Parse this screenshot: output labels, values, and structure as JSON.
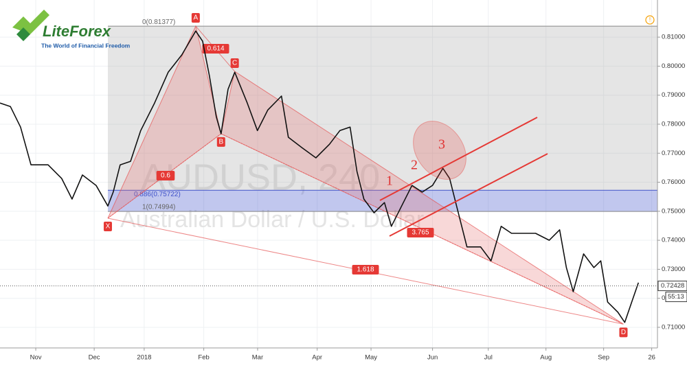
{
  "brand": {
    "name": "LiteForex",
    "tagline": "The World of Financial Freedom"
  },
  "chart_data": {
    "type": "line",
    "watermark": "AUDUSD, 240",
    "subtitle": "Australian Dollar / U.S. Dollar",
    "color": "#111111",
    "x": [
      0,
      5.4,
      10.7,
      16.1,
      25,
      32.1,
      37.5,
      42.9,
      50,
      56.1,
      58.9,
      62.5,
      67.9,
      73.2,
      80.4,
      87.5,
      94.6,
      101.8,
      105.4,
      108.9,
      112.5,
      115,
      118.6,
      122.1,
      128.6,
      133.9,
      139.3,
      146.4,
      150,
      157.1,
      164.3,
      171.4,
      176.8,
      182.1,
      185.7,
      189.3,
      194.6,
      200,
      203.6,
      208.9,
      214.3,
      219.6,
      225,
      230.4,
      233.9,
      237.5,
      242.9,
      250,
      255.4,
      260.7,
      266.1,
      271.4,
      278.6,
      285.7,
      291.1,
      294.6,
      298.2,
      303.6,
      308.9,
      312.5,
      316.1,
      321.4,
      325,
      328.6,
      332.1
    ],
    "values": [
      0.7873,
      0.7861,
      0.779,
      0.766,
      0.766,
      0.7613,
      0.7542,
      0.7625,
      0.7589,
      0.7518,
      0.7566,
      0.766,
      0.7672,
      0.7778,
      0.7873,
      0.7979,
      0.8039,
      0.8121,
      0.8086,
      0.7968,
      0.7826,
      0.7767,
      0.792,
      0.7979,
      0.7873,
      0.7778,
      0.7849,
      0.7897,
      0.7755,
      0.7719,
      0.7684,
      0.7731,
      0.7778,
      0.779,
      0.7637,
      0.7542,
      0.7495,
      0.753,
      0.7448,
      0.7518,
      0.7589,
      0.7566,
      0.7589,
      0.7648,
      0.7613,
      0.7518,
      0.7377,
      0.7377,
      0.7329,
      0.7448,
      0.7424,
      0.7424,
      0.7424,
      0.74,
      0.7436,
      0.7306,
      0.7223,
      0.7353,
      0.7306,
      0.7329,
      0.7187,
      0.7152,
      0.7117,
      0.7187,
      0.7254
    ],
    "xlim": [
      0,
      342
    ],
    "ylim": [
      0.7029,
      0.8228
    ],
    "xticks": [
      {
        "value": 18.6,
        "label": "Nov"
      },
      {
        "value": 49,
        "label": "Dec"
      },
      {
        "value": 75,
        "label": "2018"
      },
      {
        "value": 106,
        "label": "Feb"
      },
      {
        "value": 134,
        "label": "Mar"
      },
      {
        "value": 165,
        "label": "Apr"
      },
      {
        "value": 193,
        "label": "May"
      },
      {
        "value": 225,
        "label": "Jun"
      },
      {
        "value": 254,
        "label": "Jul"
      },
      {
        "value": 284,
        "label": "Aug"
      },
      {
        "value": 314,
        "label": "Sep"
      },
      {
        "value": 339,
        "label": "26"
      }
    ],
    "yticks": [
      {
        "value": 0.71,
        "label": "0.71000"
      },
      {
        "value": 0.72,
        "label": "0.72000"
      },
      {
        "value": 0.73,
        "label": "0.73000"
      },
      {
        "value": 0.74,
        "label": "0.74000"
      },
      {
        "value": 0.75,
        "label": "0.75000"
      },
      {
        "value": 0.76,
        "label": "0.76000"
      },
      {
        "value": 0.77,
        "label": "0.77000"
      },
      {
        "value": 0.78,
        "label": "0.78000"
      },
      {
        "value": 0.79,
        "label": "0.79000"
      },
      {
        "value": 0.8,
        "label": "0.80000"
      },
      {
        "value": 0.81,
        "label": "0.81000"
      }
    ],
    "grid": true,
    "last_price": {
      "value": 0.72428,
      "label": "0.72428"
    },
    "countdown": "55:13",
    "fib_levels": [
      {
        "value": 0.81377,
        "label": "0(0.81377)"
      },
      {
        "value": 0.75722,
        "label": "0.886(0.75722)"
      },
      {
        "value": 0.74994,
        "label": "1(0.74994)"
      }
    ],
    "fib_start_x": 56.1,
    "points": [
      {
        "label": "X",
        "x": 56.1,
        "y": 0.7476
      },
      {
        "label": "A",
        "x": 101.8,
        "y": 0.8138
      },
      {
        "label": "B",
        "x": 115,
        "y": 0.7767
      },
      {
        "label": "C",
        "x": 122.1,
        "y": 0.7982
      },
      {
        "label": "D",
        "x": 324.3,
        "y": 0.7111
      }
    ],
    "ratios": [
      "0.6",
      "0.614",
      "1.618",
      "3.765"
    ],
    "waves": [
      "1",
      "2",
      "3"
    ]
  }
}
